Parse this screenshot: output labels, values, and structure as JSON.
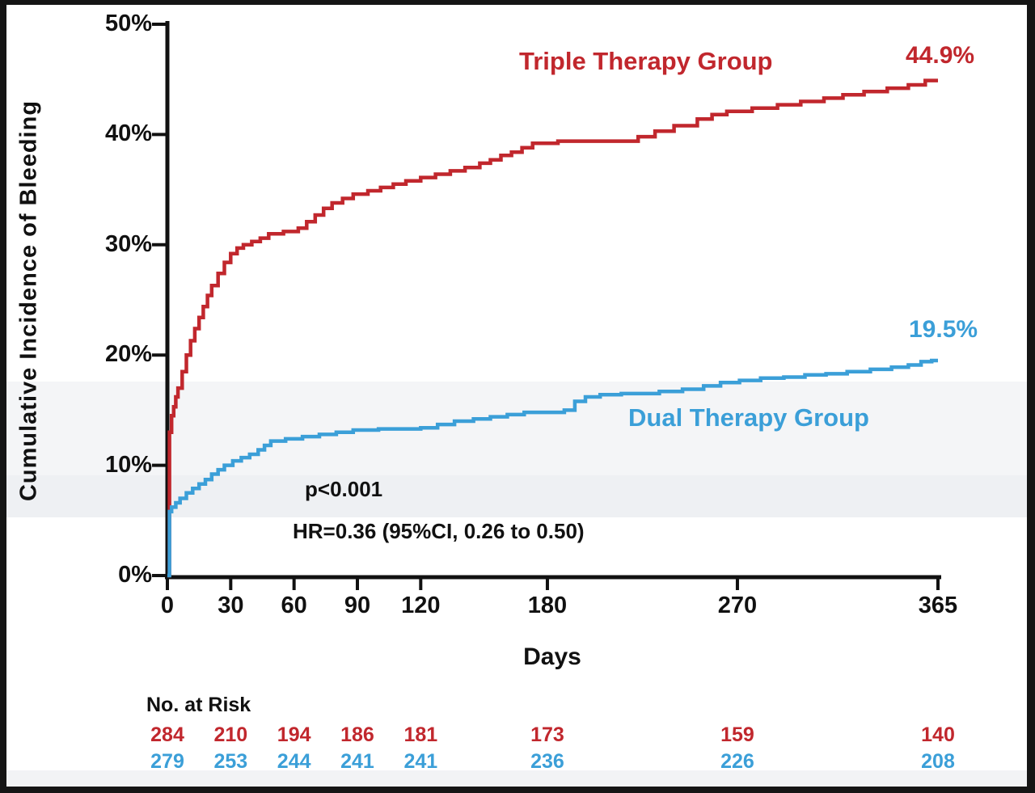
{
  "chart_data": {
    "type": "line",
    "subtype": "kaplan-meier-cumulative-incidence",
    "title": "",
    "xlabel": "Days",
    "ylabel": "Cumulative Incidence of Bleeding",
    "xlim": [
      0,
      365
    ],
    "ylim": [
      0,
      50
    ],
    "x_ticks": [
      "0",
      "30",
      "60",
      "90",
      "120",
      "180",
      "270",
      "365"
    ],
    "x_tick_days": [
      0,
      30,
      60,
      90,
      120,
      180,
      270,
      365
    ],
    "y_ticks": [
      "0%",
      "10%",
      "20%",
      "30%",
      "40%",
      "50%"
    ],
    "y_tick_pcts": [
      0,
      10,
      20,
      30,
      40,
      50
    ],
    "grid": false,
    "legend_position": "inline-labels",
    "series": [
      {
        "name": "Triple Therapy Group",
        "color": "#c1272d",
        "end_label": "44.9%",
        "points": [
          [
            0,
            0
          ],
          [
            1,
            13.0
          ],
          [
            2,
            14.5
          ],
          [
            3,
            15.3
          ],
          [
            4,
            16.2
          ],
          [
            5,
            17.0
          ],
          [
            7,
            18.5
          ],
          [
            9,
            20.0
          ],
          [
            11,
            21.3
          ],
          [
            13,
            22.4
          ],
          [
            15,
            23.4
          ],
          [
            17,
            24.4
          ],
          [
            19,
            25.4
          ],
          [
            21,
            26.3
          ],
          [
            24,
            27.4
          ],
          [
            27,
            28.4
          ],
          [
            30,
            29.2
          ],
          [
            33,
            29.7
          ],
          [
            36,
            30.0
          ],
          [
            40,
            30.3
          ],
          [
            44,
            30.6
          ],
          [
            48,
            31.0
          ],
          [
            55,
            31.2
          ],
          [
            62,
            31.5
          ],
          [
            66,
            32.1
          ],
          [
            70,
            32.7
          ],
          [
            74,
            33.3
          ],
          [
            78,
            33.8
          ],
          [
            83,
            34.2
          ],
          [
            88,
            34.6
          ],
          [
            95,
            34.9
          ],
          [
            101,
            35.2
          ],
          [
            107,
            35.5
          ],
          [
            113,
            35.8
          ],
          [
            120,
            36.1
          ],
          [
            127,
            36.4
          ],
          [
            134,
            36.7
          ],
          [
            141,
            37.0
          ],
          [
            148,
            37.4
          ],
          [
            153,
            37.7
          ],
          [
            158,
            38.1
          ],
          [
            163,
            38.4
          ],
          [
            168,
            38.8
          ],
          [
            173,
            39.2
          ],
          [
            185,
            39.4
          ],
          [
            223,
            39.8
          ],
          [
            231,
            40.3
          ],
          [
            240,
            40.8
          ],
          [
            251,
            41.4
          ],
          [
            258,
            41.8
          ],
          [
            265,
            42.1
          ],
          [
            277,
            42.4
          ],
          [
            289,
            42.7
          ],
          [
            300,
            43.0
          ],
          [
            311,
            43.3
          ],
          [
            320,
            43.6
          ],
          [
            330,
            43.9
          ],
          [
            341,
            44.2
          ],
          [
            351,
            44.5
          ],
          [
            359,
            44.9
          ],
          [
            365,
            44.9
          ]
        ]
      },
      {
        "name": "Dual Therapy Group",
        "color": "#3b9fd8",
        "end_label": "19.5%",
        "points": [
          [
            0,
            0
          ],
          [
            1,
            5.8
          ],
          [
            2,
            6.2
          ],
          [
            4,
            6.6
          ],
          [
            6,
            7.0
          ],
          [
            9,
            7.5
          ],
          [
            12,
            7.9
          ],
          [
            15,
            8.3
          ],
          [
            18,
            8.7
          ],
          [
            21,
            9.2
          ],
          [
            24,
            9.6
          ],
          [
            27,
            10.0
          ],
          [
            31,
            10.4
          ],
          [
            35,
            10.7
          ],
          [
            39,
            11.0
          ],
          [
            43,
            11.4
          ],
          [
            46,
            11.8
          ],
          [
            49,
            12.2
          ],
          [
            56,
            12.4
          ],
          [
            64,
            12.6
          ],
          [
            72,
            12.8
          ],
          [
            80,
            13.0
          ],
          [
            88,
            13.2
          ],
          [
            100,
            13.3
          ],
          [
            120,
            13.4
          ],
          [
            128,
            13.7
          ],
          [
            136,
            14.0
          ],
          [
            145,
            14.2
          ],
          [
            153,
            14.4
          ],
          [
            161,
            14.6
          ],
          [
            169,
            14.8
          ],
          [
            188,
            15.0
          ],
          [
            193,
            15.8
          ],
          [
            198,
            16.2
          ],
          [
            205,
            16.4
          ],
          [
            215,
            16.5
          ],
          [
            233,
            16.7
          ],
          [
            244,
            16.9
          ],
          [
            254,
            17.2
          ],
          [
            262,
            17.5
          ],
          [
            271,
            17.7
          ],
          [
            281,
            17.9
          ],
          [
            292,
            18.0
          ],
          [
            302,
            18.2
          ],
          [
            312,
            18.3
          ],
          [
            322,
            18.5
          ],
          [
            333,
            18.7
          ],
          [
            343,
            18.9
          ],
          [
            351,
            19.1
          ],
          [
            357,
            19.4
          ],
          [
            362,
            19.5
          ],
          [
            365,
            19.5
          ]
        ]
      }
    ],
    "annotations": [
      {
        "text": "p<0.001"
      },
      {
        "text": "HR=0.36 (95%CI, 0.26 to 0.50)"
      }
    ]
  },
  "risk_table": {
    "header": "No. at Risk",
    "rows": [
      {
        "group": "Triple Therapy Group",
        "color": "#c1272d",
        "values": [
          "284",
          "210",
          "194",
          "186",
          "181",
          "173",
          "159",
          "140"
        ]
      },
      {
        "group": "Dual Therapy Group",
        "color": "#3b9fd8",
        "values": [
          "279",
          "253",
          "244",
          "241",
          "241",
          "236",
          "226",
          "208"
        ]
      }
    ]
  },
  "colors": {
    "axis": "#111111",
    "frame": "#151515",
    "triple": "#c1272d",
    "dual": "#3b9fd8"
  }
}
